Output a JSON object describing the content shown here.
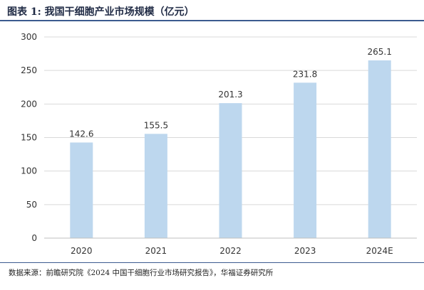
{
  "title": "图表 1:  我国干细胞产业市场规模（亿元）",
  "source": "数据来源：前瞻研究院《2024 中国干细胞行业市场研究报告》，华福证券研究所",
  "chart_data": {
    "type": "bar",
    "categories": [
      "2020",
      "2021",
      "2022",
      "2023",
      "2024E"
    ],
    "values": [
      142.6,
      155.5,
      201.3,
      231.8,
      265.1
    ],
    "value_labels": [
      "142.6",
      "155.5",
      "201.3",
      "231.8",
      "265.1"
    ],
    "yticks": [
      0,
      50,
      100,
      150,
      200,
      250,
      300
    ],
    "ylim": [
      0,
      300
    ],
    "grid": true,
    "legend": "none",
    "title": "",
    "xlabel": "",
    "ylabel": "",
    "bar_color": "#bdd7ee",
    "grid_color": "#d9d9d9",
    "axis_color": "#bfbfbf",
    "text_color": "#333333"
  }
}
